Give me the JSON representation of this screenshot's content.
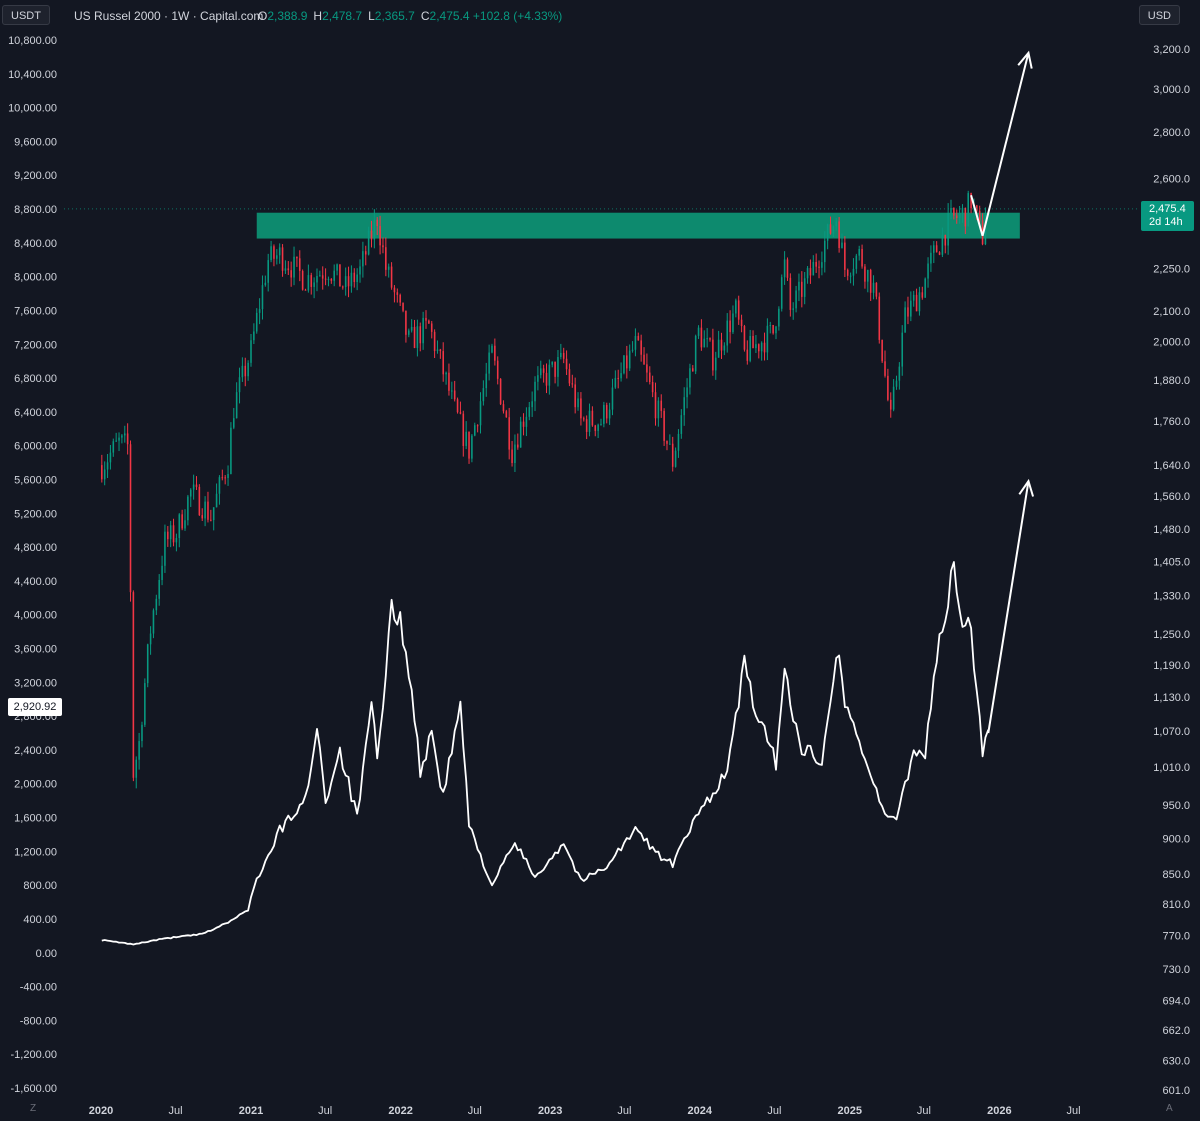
{
  "header": {
    "left_unit": "USDT",
    "right_unit": "USD",
    "symbol": "US Russel 2000 · 1W · Capital.com",
    "ohlc": [
      {
        "key": "O",
        "value": "2,388.9"
      },
      {
        "key": "H",
        "value": "2,478.7"
      },
      {
        "key": "L",
        "value": "2,365.7"
      },
      {
        "key": "C",
        "value": "2,475.4 +102.8 (+4.33%)"
      }
    ]
  },
  "badges": {
    "last_price": "2,475.4",
    "countdown": "2d 14h",
    "left_value": "2,920.92"
  },
  "corner": {
    "left": "Z",
    "right": "A"
  },
  "colors": {
    "background": "#131722",
    "up": "#089981",
    "down": "#f23645",
    "zone": "#0d8a6e",
    "line": "#ffffff",
    "text": "#d1d4dc"
  },
  "chart_data": {
    "type": "candlestick",
    "overlay_type": "line",
    "x_ticks": [
      "2020",
      "Jul",
      "2021",
      "Jul",
      "2022",
      "Jul",
      "2023",
      "Jul",
      "2024",
      "Jul",
      "2025",
      "Jul",
      "2026",
      "Jul"
    ],
    "x_tick_dates": [
      "2020-01-01",
      "2020-07-01",
      "2021-01-01",
      "2021-07-01",
      "2022-01-01",
      "2022-07-01",
      "2023-01-01",
      "2023-07-01",
      "2024-01-01",
      "2024-07-01",
      "2025-01-01",
      "2025-07-01",
      "2026-01-01",
      "2026-07-01"
    ],
    "right_axis_ticks": [
      "3,200.0",
      "3,000.0",
      "2,800.0",
      "2,600.0",
      "2,250.0",
      "2,100.0",
      "2,000.0",
      "1,880.0",
      "1,760.0",
      "1,640.0",
      "1,560.0",
      "1,480.0",
      "1,405.0",
      "1,330.0",
      "1,250.0",
      "1,190.0",
      "1,130.0",
      "1,070.0",
      "1,010.0",
      "950.0",
      "900.0",
      "850.0",
      "810.0",
      "770.0",
      "730.0",
      "694.0",
      "662.0",
      "630.0",
      "601.0"
    ],
    "right_axis_scale": "log",
    "left_axis_ticks": [
      "10,800.00",
      "10,400.00",
      "10,000.00",
      "9,600.00",
      "9,200.00",
      "8,800.00",
      "8,400.00",
      "8,000.00",
      "7,600.00",
      "7,200.00",
      "6,800.00",
      "6,400.00",
      "6,000.00",
      "5,600.00",
      "5,200.00",
      "4,800.00",
      "4,400.00",
      "4,000.00",
      "3,600.00",
      "3,200.00",
      "2,800.00",
      "2,400.00",
      "2,000.00",
      "1,600.00",
      "1,200.00",
      "800.00",
      "400.00",
      "0.00",
      "-400.00",
      "-800.00",
      "-1,200.00",
      "-1,600.00"
    ],
    "left_axis_range": [
      -1600,
      10800
    ],
    "resistance_zone": {
      "from": 2360,
      "to": 2460
    },
    "candle_anchors": [
      [
        "2020-01-03",
        1640
      ],
      [
        "2020-02-14",
        1700
      ],
      [
        "2020-03-06",
        1690
      ],
      [
        "2020-03-20",
        1000
      ],
      [
        "2020-04-03",
        1050
      ],
      [
        "2020-05-01",
        1260
      ],
      [
        "2020-06-05",
        1450
      ],
      [
        "2020-07-03",
        1470
      ],
      [
        "2020-08-07",
        1570
      ],
      [
        "2020-09-04",
        1540
      ],
      [
        "2020-09-25",
        1510
      ],
      [
        "2020-11-06",
        1650
      ],
      [
        "2020-11-20",
        1800
      ],
      [
        "2021-01-01",
        1970
      ],
      [
        "2021-02-12",
        2280
      ],
      [
        "2021-03-12",
        2300
      ],
      [
        "2021-05-14",
        2210
      ],
      [
        "2021-07-09",
        2250
      ],
      [
        "2021-08-20",
        2180
      ],
      [
        "2021-09-24",
        2240
      ],
      [
        "2021-11-05",
        2440
      ],
      [
        "2021-11-26",
        2250
      ],
      [
        "2022-01-21",
        2000
      ],
      [
        "2022-03-11",
        2050
      ],
      [
        "2022-05-13",
        1790
      ],
      [
        "2022-06-17",
        1680
      ],
      [
        "2022-08-12",
        1960
      ],
      [
        "2022-09-30",
        1680
      ],
      [
        "2022-11-25",
        1860
      ],
      [
        "2023-02-03",
        1940
      ],
      [
        "2023-03-17",
        1760
      ],
      [
        "2023-05-05",
        1760
      ],
      [
        "2023-07-28",
        1990
      ],
      [
        "2023-10-27",
        1650
      ],
      [
        "2023-12-29",
        2030
      ],
      [
        "2024-02-02",
        1950
      ],
      [
        "2024-03-29",
        2100
      ],
      [
        "2024-04-19",
        1960
      ],
      [
        "2024-06-28",
        2030
      ],
      [
        "2024-07-26",
        2260
      ],
      [
        "2024-08-09",
        2100
      ],
      [
        "2024-09-27",
        2230
      ],
      [
        "2024-11-29",
        2440
      ],
      [
        "2024-12-20",
        2250
      ],
      [
        "2025-01-24",
        2300
      ],
      [
        "2025-02-28",
        2180
      ],
      [
        "2025-04-04",
        1820
      ],
      [
        "2025-04-11",
        1760
      ],
      [
        "2025-05-16",
        2080
      ],
      [
        "2025-06-27",
        2180
      ],
      [
        "2025-07-25",
        2300
      ],
      [
        "2025-09-05",
        2430
      ],
      [
        "2025-10-10",
        2460
      ],
      [
        "2025-10-24",
        2510
      ],
      [
        "2025-11-14",
        2390
      ],
      [
        "2025-11-21",
        2370
      ],
      [
        "2025-11-28",
        2475
      ]
    ],
    "overlay_line_anchors": [
      [
        "2020-01-03",
        150
      ],
      [
        "2020-03-20",
        100
      ],
      [
        "2020-06-05",
        170
      ],
      [
        "2020-09-04",
        220
      ],
      [
        "2020-11-06",
        360
      ],
      [
        "2020-12-25",
        500
      ],
      [
        "2021-01-08",
        800
      ],
      [
        "2021-02-19",
        1200
      ],
      [
        "2021-03-12",
        1450
      ],
      [
        "2021-05-14",
        1800
      ],
      [
        "2021-06-11",
        2700
      ],
      [
        "2021-07-02",
        1800
      ],
      [
        "2021-08-06",
        2400
      ],
      [
        "2021-09-17",
        1600
      ],
      [
        "2021-10-22",
        2900
      ],
      [
        "2021-11-05",
        2300
      ],
      [
        "2021-11-26",
        3200
      ],
      [
        "2021-12-10",
        4150
      ],
      [
        "2022-01-14",
        3700
      ],
      [
        "2022-02-18",
        2150
      ],
      [
        "2022-03-18",
        2600
      ],
      [
        "2022-04-15",
        1850
      ],
      [
        "2022-05-27",
        2950
      ],
      [
        "2022-06-17",
        1500
      ],
      [
        "2022-08-12",
        800
      ],
      [
        "2022-10-07",
        1300
      ],
      [
        "2022-11-25",
        900
      ],
      [
        "2023-02-03",
        1300
      ],
      [
        "2023-03-17",
        850
      ],
      [
        "2023-05-12",
        1000
      ],
      [
        "2023-07-28",
        1450
      ],
      [
        "2023-10-06",
        1100
      ],
      [
        "2023-10-27",
        1050
      ],
      [
        "2023-12-29",
        1650
      ],
      [
        "2024-03-08",
        2150
      ],
      [
        "2024-04-19",
        3400
      ],
      [
        "2024-05-24",
        2750
      ],
      [
        "2024-07-05",
        2250
      ],
      [
        "2024-07-26",
        3300
      ],
      [
        "2024-09-06",
        2400
      ],
      [
        "2024-10-25",
        2300
      ],
      [
        "2024-11-29",
        3600
      ],
      [
        "2024-12-20",
        3000
      ],
      [
        "2025-02-07",
        2300
      ],
      [
        "2025-04-04",
        1550
      ],
      [
        "2025-04-25",
        1600
      ],
      [
        "2025-06-06",
        2400
      ],
      [
        "2025-07-04",
        2350
      ],
      [
        "2025-07-25",
        3300
      ],
      [
        "2025-09-12",
        4530
      ],
      [
        "2025-10-03",
        3900
      ],
      [
        "2025-10-24",
        3800
      ],
      [
        "2025-11-21",
        2420
      ],
      [
        "2025-12-05",
        2600
      ]
    ],
    "projection_arrows": [
      {
        "series": "price",
        "from": [
          "2025-11-21",
          2370
        ],
        "to": [
          "2026-03-13",
          3180
        ]
      },
      {
        "series": "overlay",
        "from": [
          "2025-12-05",
          2600
        ],
        "to": [
          "2026-03-13",
          5580
        ]
      }
    ]
  }
}
